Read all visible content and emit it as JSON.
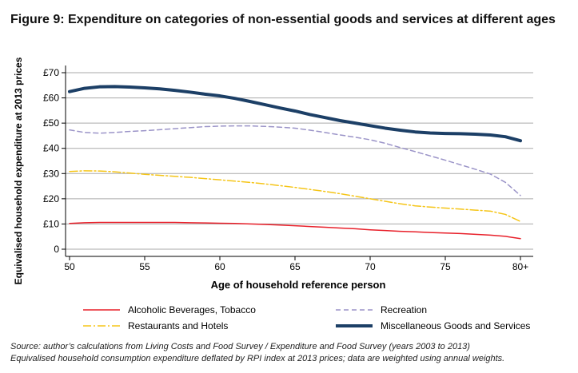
{
  "title": "Figure 9: Expenditure on categories of non-essential goods and services at different ages",
  "source_line1": "Source: author’s calculations from Living Costs and Food Survey / Expenditure and Food Survey (years 2003 to 2013)",
  "source_line2": "Equivalised household consumption expenditure deflated by RPI index at 2013 prices; data are weighted using annual weights.",
  "chart_data": {
    "type": "line",
    "xlabel": "Age of household reference person",
    "ylabel": "Equivalised household expenditure at 2013 prices",
    "x": [
      50,
      51,
      52,
      53,
      54,
      55,
      56,
      57,
      58,
      59,
      60,
      61,
      62,
      63,
      64,
      65,
      66,
      67,
      68,
      69,
      70,
      71,
      72,
      73,
      74,
      75,
      76,
      77,
      78,
      79,
      80
    ],
    "xlim": [
      50,
      80
    ],
    "ylim": [
      0,
      70
    ],
    "xticks": [
      50,
      55,
      60,
      65,
      70,
      75,
      80
    ],
    "xtick_labels": [
      "50",
      "55",
      "60",
      "65",
      "70",
      "75",
      "80+"
    ],
    "yticks": [
      0,
      10,
      20,
      30,
      40,
      50,
      60,
      70
    ],
    "ytick_labels": [
      "0",
      "£10",
      "£20",
      "£30",
      "£40",
      "£50",
      "£60",
      "£70"
    ],
    "grid": true,
    "legend_position": "bottom",
    "series": [
      {
        "name": "Alcoholic Beverages, Tobacco",
        "color": "#e8202a",
        "style": "solid",
        "values": [
          10.2,
          10.5,
          10.6,
          10.6,
          10.6,
          10.6,
          10.6,
          10.6,
          10.5,
          10.4,
          10.3,
          10.2,
          10,
          9.8,
          9.6,
          9.3,
          9,
          8.7,
          8.4,
          8.1,
          7.7,
          7.4,
          7.1,
          6.9,
          6.6,
          6.4,
          6.2,
          5.9,
          5.6,
          5.1,
          4.2
        ]
      },
      {
        "name": "Recreation",
        "color": "#9b94c8",
        "style": "dashed",
        "values": [
          47.3,
          46.3,
          46,
          46.3,
          46.7,
          47,
          47.4,
          47.8,
          48.2,
          48.6,
          48.8,
          48.9,
          48.9,
          48.7,
          48.4,
          48,
          47.2,
          46.3,
          45.3,
          44.4,
          43.4,
          42,
          40.3,
          38.7,
          37,
          35.3,
          33.5,
          31.7,
          29.8,
          26.5,
          21.3
        ]
      },
      {
        "name": "Restaurants and Hotels",
        "color": "#f5c518",
        "style": "dashdot",
        "values": [
          30.8,
          31.1,
          31,
          30.7,
          30.2,
          29.7,
          29.3,
          28.9,
          28.5,
          28,
          27.5,
          27,
          26.5,
          25.9,
          25.2,
          24.5,
          23.7,
          22.9,
          22,
          21,
          20,
          19,
          18,
          17.2,
          16.7,
          16.3,
          15.9,
          15.5,
          15.1,
          13.8,
          11
        ]
      },
      {
        "name": "Miscellaneous Goods and Services",
        "color": "#1c3f66",
        "style": "thick",
        "values": [
          62.5,
          63.8,
          64.4,
          64.5,
          64.3,
          64,
          63.6,
          63,
          62.3,
          61.5,
          60.8,
          59.8,
          58.6,
          57.3,
          56,
          54.8,
          53.4,
          52.2,
          51,
          50,
          49,
          48,
          47.2,
          46.5,
          46.1,
          45.9,
          45.8,
          45.6,
          45.3,
          44.6,
          43
        ]
      }
    ]
  }
}
